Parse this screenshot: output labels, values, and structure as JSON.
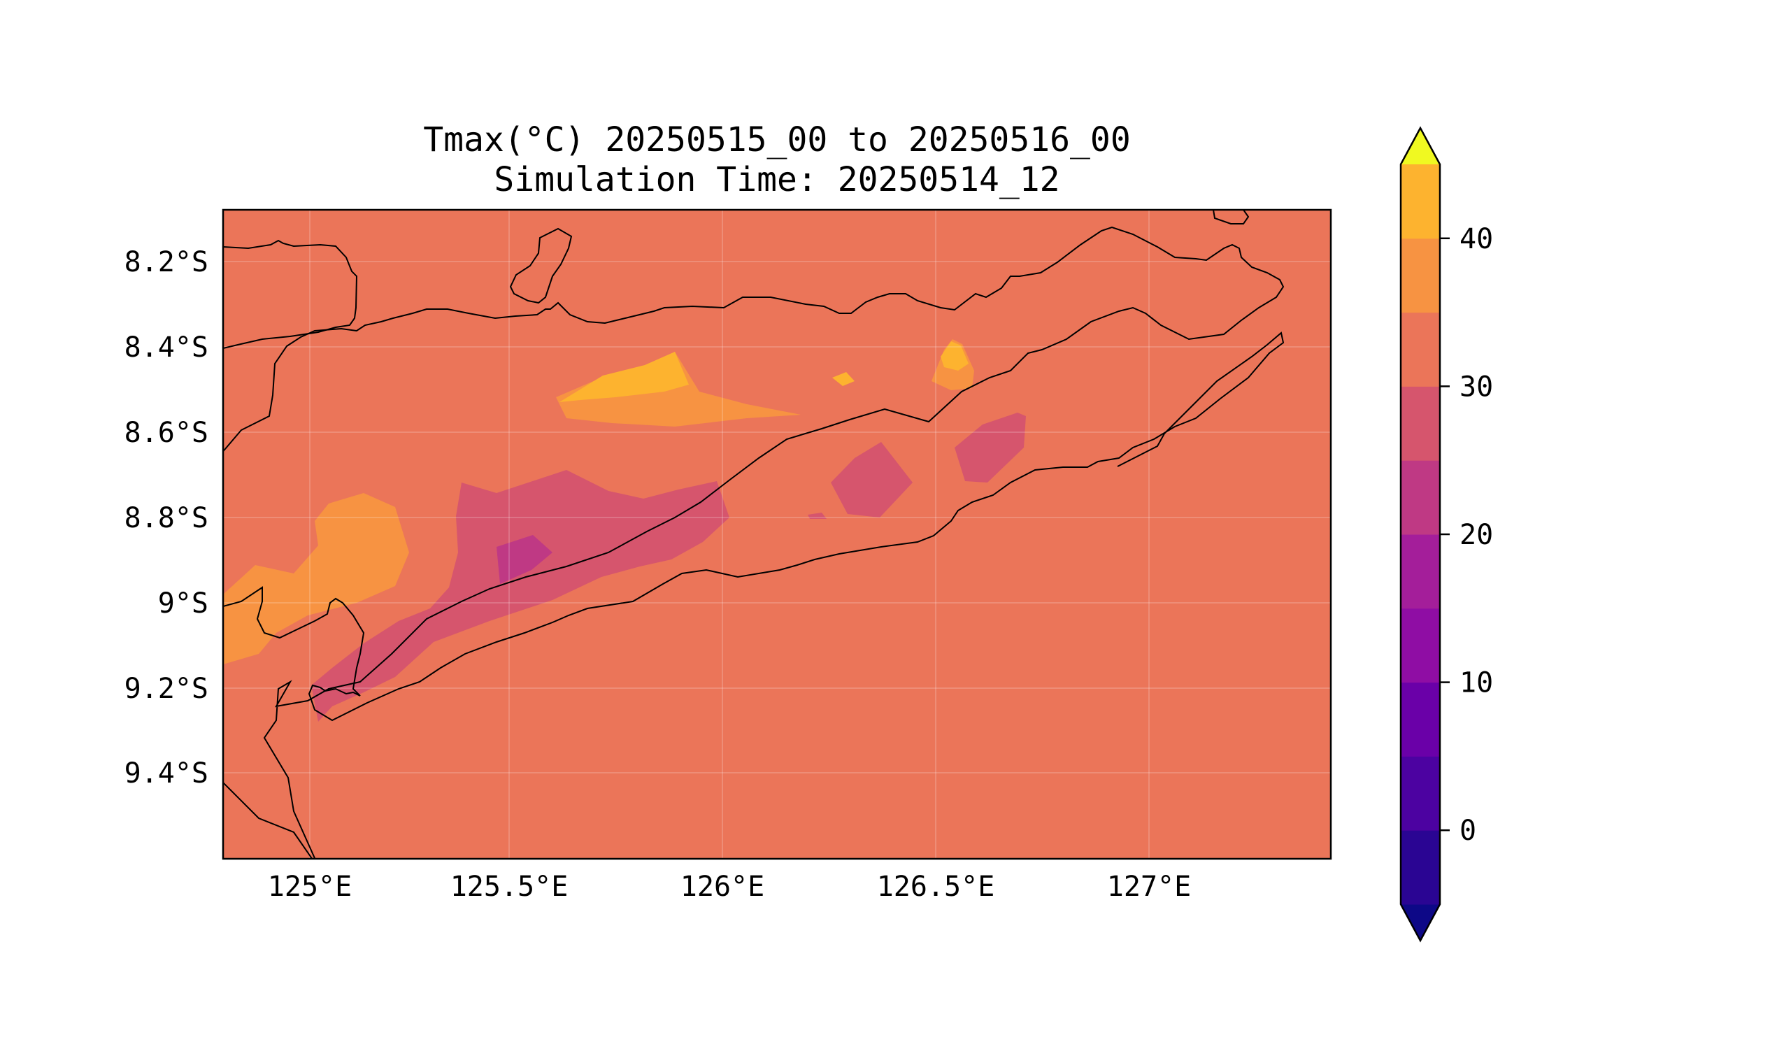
{
  "title": {
    "line1": "Tmax(°C) 20250515_00 to 20250516_00",
    "line2": "Simulation Time: 20250514_12"
  },
  "map": {
    "lon_ticks": [
      "125°E",
      "125.5°E",
      "126°E",
      "126.5°E",
      "127°E"
    ],
    "lat_ticks": [
      "8.2°S",
      "8.4°S",
      "8.6°S",
      "8.8°S",
      "9°S",
      "9.2°S",
      "9.4°S"
    ],
    "grid": true,
    "background_colors": {
      "base_25_30": "#eb7559",
      "band_30_35": "#f79342",
      "band_35_40": "#fdb32f",
      "band_20_25": "#d6556d",
      "band_15_20": "#bf3984"
    }
  },
  "colorbar": {
    "ticks": [
      "0",
      "10",
      "20",
      "30",
      "40"
    ],
    "levels": [
      -5,
      0,
      5,
      10,
      15,
      20,
      25,
      30,
      35,
      40,
      45
    ],
    "extend": "both",
    "colors": [
      "#0d0887",
      "#2a0593",
      "#4c02a1",
      "#6a00a8",
      "#8f0da4",
      "#a41e9a",
      "#bf3984",
      "#d6556d",
      "#eb7559",
      "#f79342",
      "#fdb32f",
      "#f0f921"
    ]
  }
}
